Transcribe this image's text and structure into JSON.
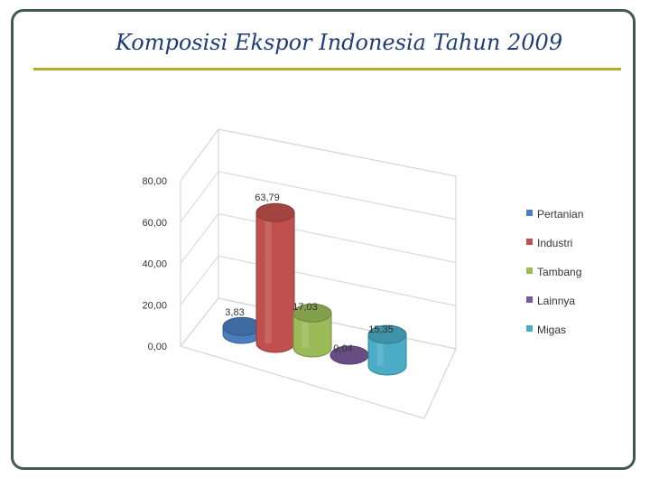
{
  "slide": {
    "title": "Komposisi Ekspor Indonesia Tahun 2009"
  },
  "chart_data": {
    "type": "bar",
    "style": "3d-cylinder",
    "categories": [
      "Pertanian",
      "Industri",
      "Tambang",
      "Lainnya",
      "Migas"
    ],
    "values": [
      3.83,
      63.79,
      17.03,
      0.04,
      15.35
    ],
    "value_labels": [
      "3,83",
      "63,79",
      "17,03",
      "0,04",
      "15,35"
    ],
    "colors": [
      "#4a7ec0",
      "#c0504d",
      "#9bbb59",
      "#7a5a9a",
      "#4bacc6"
    ],
    "yticks": [
      "0,00",
      "20,00",
      "40,00",
      "60,00",
      "80,00"
    ],
    "ylim": [
      0,
      80
    ],
    "grid": true,
    "legend_position": "right",
    "legend": [
      "Pertanian",
      "Industri",
      "Tambang",
      "Lainnya",
      "Migas"
    ]
  }
}
